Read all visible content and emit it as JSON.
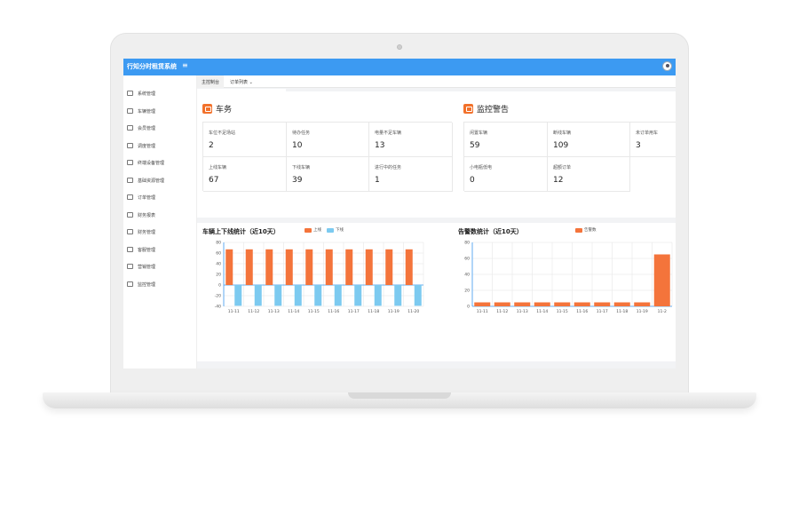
{
  "app": {
    "title": "行知分时租赁系统",
    "menu_icon": "hamburger-icon"
  },
  "sidebar": {
    "items": [
      {
        "label": "系统管理",
        "icon": "monitor-icon"
      },
      {
        "label": "车辆管理",
        "icon": "car-icon"
      },
      {
        "label": "会员管理",
        "icon": "users-icon"
      },
      {
        "label": "调度管理",
        "icon": "server-icon"
      },
      {
        "label": "终端设备管理",
        "icon": "device-icon"
      },
      {
        "label": "基础资源管理",
        "icon": "resource-icon"
      },
      {
        "label": "订单管理",
        "icon": "order-icon"
      },
      {
        "label": "财务报表",
        "icon": "report-icon"
      },
      {
        "label": "财务管理",
        "icon": "clock-icon"
      },
      {
        "label": "客服管理",
        "icon": "headset-icon"
      },
      {
        "label": "营销管理",
        "icon": "marketing-icon"
      },
      {
        "label": "监控管理",
        "icon": "monitor-check-icon"
      }
    ]
  },
  "tabs": [
    {
      "label": "主控制台"
    },
    {
      "label": "订单列表"
    }
  ],
  "car_section": {
    "title": "车务",
    "cells": [
      {
        "label": "车位不足场站",
        "value": "2"
      },
      {
        "label": "待办任务",
        "value": "10"
      },
      {
        "label": "电量不足车辆",
        "value": "13"
      },
      {
        "label": "上线车辆",
        "value": "67"
      },
      {
        "label": "下线车辆",
        "value": "39"
      },
      {
        "label": "进行中的任务",
        "value": "1"
      }
    ]
  },
  "monitor_section": {
    "title": "监控警告",
    "cells": [
      {
        "label": "闲置车辆",
        "value": "59"
      },
      {
        "label": "断线车辆",
        "value": "109"
      },
      {
        "label": "未订单用车",
        "value": "3"
      },
      {
        "label": "小电瓶低电",
        "value": "0"
      },
      {
        "label": "超额订单",
        "value": "12"
      }
    ]
  },
  "colors": {
    "accent": "#3c9af2",
    "orange": "#f4743b",
    "blue": "#7ccaf0"
  },
  "chart_data": [
    {
      "type": "bar",
      "title": "车辆上下线统计（近10天）",
      "categories": [
        "11-11",
        "11-12",
        "11-13",
        "11-14",
        "11-15",
        "11-16",
        "11-17",
        "11-18",
        "11-19",
        "11-20"
      ],
      "series": [
        {
          "name": "上线",
          "values": [
            67,
            67,
            67,
            67,
            67,
            67,
            67,
            67,
            67,
            67
          ],
          "color": "#f4743b"
        },
        {
          "name": "下线",
          "values": [
            -39,
            -39,
            -39,
            -39,
            -39,
            -39,
            -39,
            -39,
            -39,
            -39
          ],
          "color": "#7ccaf0"
        }
      ],
      "yticks": [
        "80",
        "60",
        "40",
        "20",
        "0",
        "-20",
        "-40"
      ],
      "ylim": [
        -40,
        80
      ],
      "legend": "top"
    },
    {
      "type": "bar",
      "title": "告警数统计（近10天）",
      "categories": [
        "11-11",
        "11-12",
        "11-13",
        "11-14",
        "11-15",
        "11-16",
        "11-17",
        "11-18",
        "11-19",
        "11-2"
      ],
      "series": [
        {
          "name": "告警数",
          "values": [
            5,
            5,
            5,
            5,
            5,
            5,
            5,
            5,
            5,
            65
          ],
          "color": "#f4743b"
        }
      ],
      "yticks": [
        "80",
        "60",
        "40",
        "20",
        "0"
      ],
      "ylim": [
        0,
        80
      ],
      "legend": "top"
    }
  ]
}
